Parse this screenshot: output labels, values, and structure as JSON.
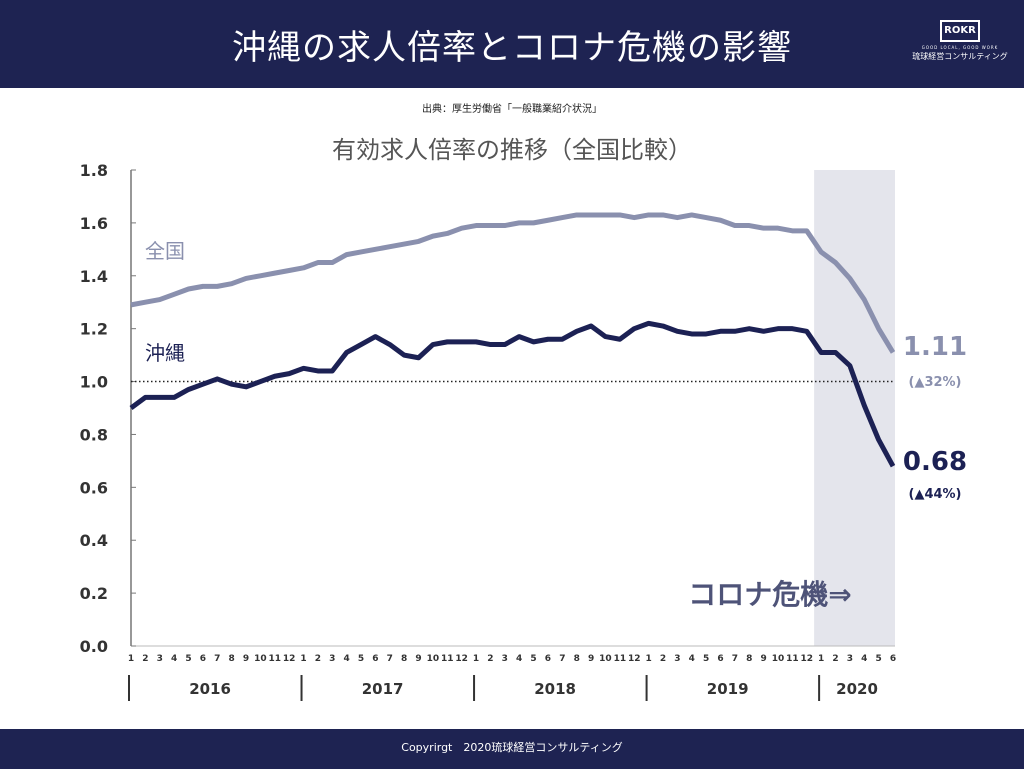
{
  "header": {
    "title": "沖縄の求人倍率とコロナ危機の影響",
    "logo_tagline": "GOOD LOCAL, GOOD WORK",
    "logo_name": "琉球経営コンサルティング"
  },
  "source": "出典：厚生労働省「一般職業紹介状況」",
  "footer": "Copyrirgt　2020琉球経営コンサルティング",
  "colors": {
    "navy": "#1e2352",
    "national": "#8a90ae",
    "okinawa": "#1c2154",
    "crisis_shade": "#e4e5ec"
  },
  "chart_data": {
    "type": "line",
    "title": "有効求人倍率の推移（全国比較）",
    "ylim": [
      0,
      1.8
    ],
    "yticks": [
      "0.0",
      "0.2",
      "0.4",
      "0.6",
      "0.8",
      "1.0",
      "1.2",
      "1.4",
      "1.6",
      "1.8"
    ],
    "reference_line": 1.0,
    "years": [
      "2016",
      "2017",
      "2018",
      "2019",
      "2020"
    ],
    "months": [
      "1",
      "2",
      "3",
      "4",
      "5",
      "6",
      "7",
      "8",
      "9",
      "10",
      "11",
      "12",
      "1",
      "2",
      "3",
      "4",
      "5",
      "6",
      "7",
      "8",
      "9",
      "10",
      "11",
      "12",
      "1",
      "2",
      "3",
      "4",
      "5",
      "6",
      "7",
      "8",
      "9",
      "10",
      "11",
      "12",
      "1",
      "2",
      "3",
      "4",
      "5",
      "6",
      "7",
      "8",
      "9",
      "10",
      "11",
      "12",
      "1",
      "2",
      "3",
      "4",
      "5",
      "6"
    ],
    "crisis_label": "コロナ危機⇒",
    "crisis_start": "2020-1",
    "series": [
      {
        "name": "全国",
        "end_label": "1.11",
        "change_label": "(▲32%)",
        "values": [
          1.29,
          1.3,
          1.31,
          1.33,
          1.35,
          1.36,
          1.36,
          1.37,
          1.39,
          1.4,
          1.41,
          1.42,
          1.43,
          1.45,
          1.45,
          1.48,
          1.49,
          1.5,
          1.51,
          1.52,
          1.53,
          1.55,
          1.56,
          1.58,
          1.59,
          1.59,
          1.59,
          1.6,
          1.6,
          1.61,
          1.62,
          1.63,
          1.63,
          1.63,
          1.63,
          1.62,
          1.63,
          1.63,
          1.62,
          1.63,
          1.62,
          1.61,
          1.59,
          1.59,
          1.58,
          1.58,
          1.57,
          1.57,
          1.49,
          1.45,
          1.39,
          1.31,
          1.2,
          1.11
        ]
      },
      {
        "name": "沖縄",
        "end_label": "0.68",
        "change_label": "(▲44%)",
        "values": [
          0.9,
          0.94,
          0.94,
          0.94,
          0.97,
          0.99,
          1.01,
          0.99,
          0.98,
          1.0,
          1.02,
          1.03,
          1.05,
          1.04,
          1.04,
          1.11,
          1.14,
          1.17,
          1.14,
          1.1,
          1.09,
          1.14,
          1.15,
          1.15,
          1.15,
          1.14,
          1.14,
          1.17,
          1.15,
          1.16,
          1.16,
          1.19,
          1.21,
          1.17,
          1.16,
          1.2,
          1.22,
          1.21,
          1.19,
          1.18,
          1.18,
          1.19,
          1.19,
          1.2,
          1.19,
          1.2,
          1.2,
          1.19,
          1.11,
          1.11,
          1.06,
          0.91,
          0.78,
          0.68
        ]
      }
    ]
  }
}
